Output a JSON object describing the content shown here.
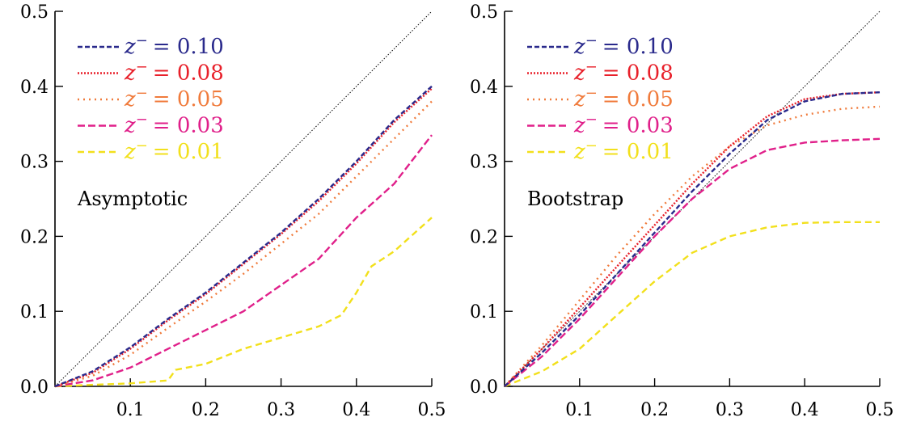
{
  "chart_data": [
    {
      "type": "line",
      "title": "Asymptotic",
      "xlabel": "",
      "ylabel": "",
      "xlim": [
        0,
        0.5
      ],
      "ylim": [
        0,
        0.5
      ],
      "xticks": [
        "0.1",
        "0.2",
        "0.3",
        "0.4",
        "0.5"
      ],
      "yticks": [
        "0.0",
        "0.1",
        "0.2",
        "0.3",
        "0.4",
        "0.5"
      ],
      "diagonal": true,
      "legend_position": "top-left",
      "series": [
        {
          "name": "z⁻ = 0.10",
          "legend_prefix": "z",
          "legend_sup": "−",
          "legend_value": "= 0.10",
          "color": "#2a2a8c",
          "dash": "6 3",
          "x": [
            0,
            0.05,
            0.1,
            0.15,
            0.2,
            0.25,
            0.3,
            0.35,
            0.4,
            0.45,
            0.5
          ],
          "y": [
            0,
            0.02,
            0.052,
            0.09,
            0.125,
            0.165,
            0.205,
            0.25,
            0.3,
            0.355,
            0.4
          ]
        },
        {
          "name": "z⁻ = 0.08",
          "legend_prefix": "z",
          "legend_sup": "−",
          "legend_value": "= 0.08",
          "color": "#e8202a",
          "dash": "2 2",
          "x": [
            0,
            0.05,
            0.1,
            0.15,
            0.2,
            0.25,
            0.3,
            0.35,
            0.4,
            0.45,
            0.5
          ],
          "y": [
            0,
            0.018,
            0.05,
            0.088,
            0.123,
            0.163,
            0.203,
            0.247,
            0.297,
            0.352,
            0.397
          ]
        },
        {
          "name": "z⁻ = 0.05",
          "legend_prefix": "z",
          "legend_sup": "−",
          "legend_value": "= 0.05",
          "color": "#f07b3c",
          "dash": "2 5",
          "x": [
            0,
            0.05,
            0.1,
            0.15,
            0.2,
            0.25,
            0.3,
            0.35,
            0.4,
            0.45,
            0.5
          ],
          "y": [
            0,
            0.014,
            0.042,
            0.078,
            0.113,
            0.15,
            0.19,
            0.23,
            0.28,
            0.33,
            0.38
          ]
        },
        {
          "name": "z⁻ = 0.03",
          "legend_prefix": "z",
          "legend_sup": "−",
          "legend_value": "= 0.03",
          "color": "#e0208a",
          "dash": "9 4",
          "x": [
            0,
            0.05,
            0.1,
            0.15,
            0.2,
            0.25,
            0.3,
            0.35,
            0.4,
            0.45,
            0.5
          ],
          "y": [
            0,
            0.008,
            0.025,
            0.05,
            0.075,
            0.1,
            0.135,
            0.17,
            0.225,
            0.27,
            0.335
          ]
        },
        {
          "name": "z⁻ = 0.01",
          "legend_prefix": "z",
          "legend_sup": "−",
          "legend_value": "= 0.01",
          "color": "#f2e01c",
          "dash": "8 5",
          "x": [
            0,
            0.05,
            0.1,
            0.15,
            0.16,
            0.2,
            0.25,
            0.3,
            0.35,
            0.38,
            0.4,
            0.42,
            0.45,
            0.5
          ],
          "y": [
            0,
            0.002,
            0.004,
            0.008,
            0.022,
            0.03,
            0.05,
            0.065,
            0.08,
            0.095,
            0.125,
            0.16,
            0.18,
            0.225
          ]
        }
      ]
    },
    {
      "type": "line",
      "title": "Bootstrap",
      "xlabel": "",
      "ylabel": "",
      "xlim": [
        0,
        0.5
      ],
      "ylim": [
        0,
        0.5
      ],
      "xticks": [
        "0.1",
        "0.2",
        "0.3",
        "0.4",
        "0.5"
      ],
      "yticks": [
        "0.0",
        "0.1",
        "0.2",
        "0.3",
        "0.4",
        "0.5"
      ],
      "diagonal": true,
      "legend_position": "top-left",
      "series": [
        {
          "name": "z⁻ = 0.10",
          "legend_prefix": "z",
          "legend_sup": "−",
          "legend_value": "= 0.10",
          "color": "#2a2a8c",
          "dash": "6 3",
          "x": [
            0,
            0.05,
            0.1,
            0.15,
            0.2,
            0.25,
            0.3,
            0.35,
            0.4,
            0.45,
            0.5
          ],
          "y": [
            0,
            0.045,
            0.095,
            0.15,
            0.205,
            0.26,
            0.31,
            0.355,
            0.38,
            0.39,
            0.392
          ]
        },
        {
          "name": "z⁻ = 0.08",
          "legend_prefix": "z",
          "legend_sup": "−",
          "legend_value": "= 0.08",
          "color": "#e8202a",
          "dash": "2 2",
          "x": [
            0,
            0.05,
            0.1,
            0.15,
            0.2,
            0.25,
            0.3,
            0.35,
            0.4,
            0.45,
            0.5
          ],
          "y": [
            0,
            0.05,
            0.105,
            0.16,
            0.215,
            0.27,
            0.32,
            0.36,
            0.383,
            0.39,
            0.392
          ]
        },
        {
          "name": "z⁻ = 0.05",
          "legend_prefix": "z",
          "legend_sup": "−",
          "legend_value": "= 0.05",
          "color": "#f07b3c",
          "dash": "2 5",
          "x": [
            0,
            0.05,
            0.1,
            0.15,
            0.2,
            0.25,
            0.3,
            0.35,
            0.4,
            0.45,
            0.5
          ],
          "y": [
            0,
            0.055,
            0.115,
            0.175,
            0.23,
            0.28,
            0.32,
            0.348,
            0.362,
            0.37,
            0.373
          ]
        },
        {
          "name": "z⁻ = 0.03",
          "legend_prefix": "z",
          "legend_sup": "−",
          "legend_value": "= 0.03",
          "color": "#e0208a",
          "dash": "9 4",
          "x": [
            0,
            0.05,
            0.1,
            0.15,
            0.2,
            0.25,
            0.3,
            0.35,
            0.4,
            0.45,
            0.5
          ],
          "y": [
            0,
            0.04,
            0.09,
            0.145,
            0.2,
            0.25,
            0.29,
            0.315,
            0.325,
            0.328,
            0.33
          ]
        },
        {
          "name": "z⁻ = 0.01",
          "legend_prefix": "z",
          "legend_sup": "−",
          "legend_value": "= 0.01",
          "color": "#f2e01c",
          "dash": "8 5",
          "x": [
            0,
            0.05,
            0.1,
            0.15,
            0.2,
            0.25,
            0.3,
            0.35,
            0.4,
            0.45,
            0.5
          ],
          "y": [
            0,
            0.02,
            0.05,
            0.095,
            0.14,
            0.178,
            0.2,
            0.212,
            0.218,
            0.219,
            0.219
          ]
        }
      ]
    }
  ]
}
